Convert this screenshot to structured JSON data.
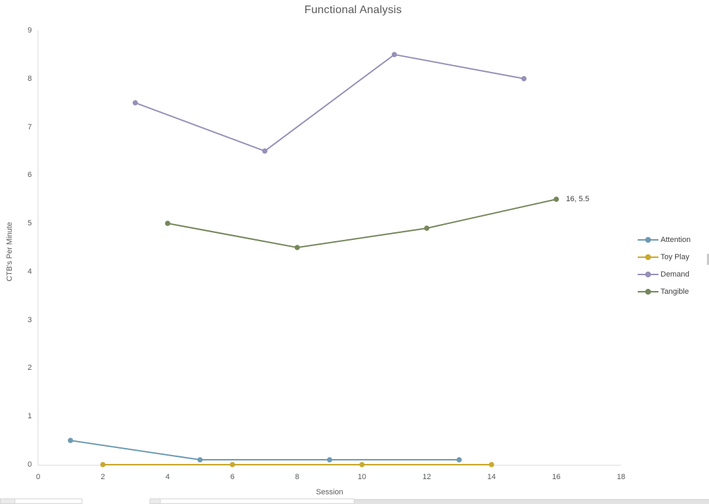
{
  "chart_data": {
    "type": "line",
    "title": "Functional Analysis",
    "xlabel": "Session",
    "ylabel": "CTB's Per Minute",
    "xlim": [
      0,
      18
    ],
    "ylim": [
      0,
      9
    ],
    "x_ticks": [
      0,
      2,
      4,
      6,
      8,
      10,
      12,
      14,
      16,
      18
    ],
    "y_ticks": [
      0,
      1,
      2,
      3,
      4,
      5,
      6,
      7,
      8,
      9
    ],
    "grid": false,
    "legend_position": "right",
    "axis_color": "#d9d9d9",
    "tick_label_color": "#595959",
    "series": [
      {
        "name": "Attention",
        "color": "#6d9ab1",
        "x": [
          1,
          5,
          9,
          13
        ],
        "y": [
          0.5,
          0.1,
          0.1,
          0.1
        ]
      },
      {
        "name": "Toy Play",
        "color": "#c9a92d",
        "x": [
          2,
          6,
          10,
          14
        ],
        "y": [
          0,
          0,
          0,
          0
        ]
      },
      {
        "name": "Demand",
        "color": "#9591b8",
        "x": [
          3,
          7,
          11,
          15
        ],
        "y": [
          7.5,
          6.5,
          8.5,
          8
        ]
      },
      {
        "name": "Tangible",
        "color": "#75875b",
        "x": [
          4,
          8,
          12,
          16
        ],
        "y": [
          5,
          4.5,
          4.9,
          5.5
        ]
      }
    ],
    "annotations": [
      {
        "text": "16, 5.5",
        "x": 16,
        "y": 5.5
      }
    ]
  }
}
